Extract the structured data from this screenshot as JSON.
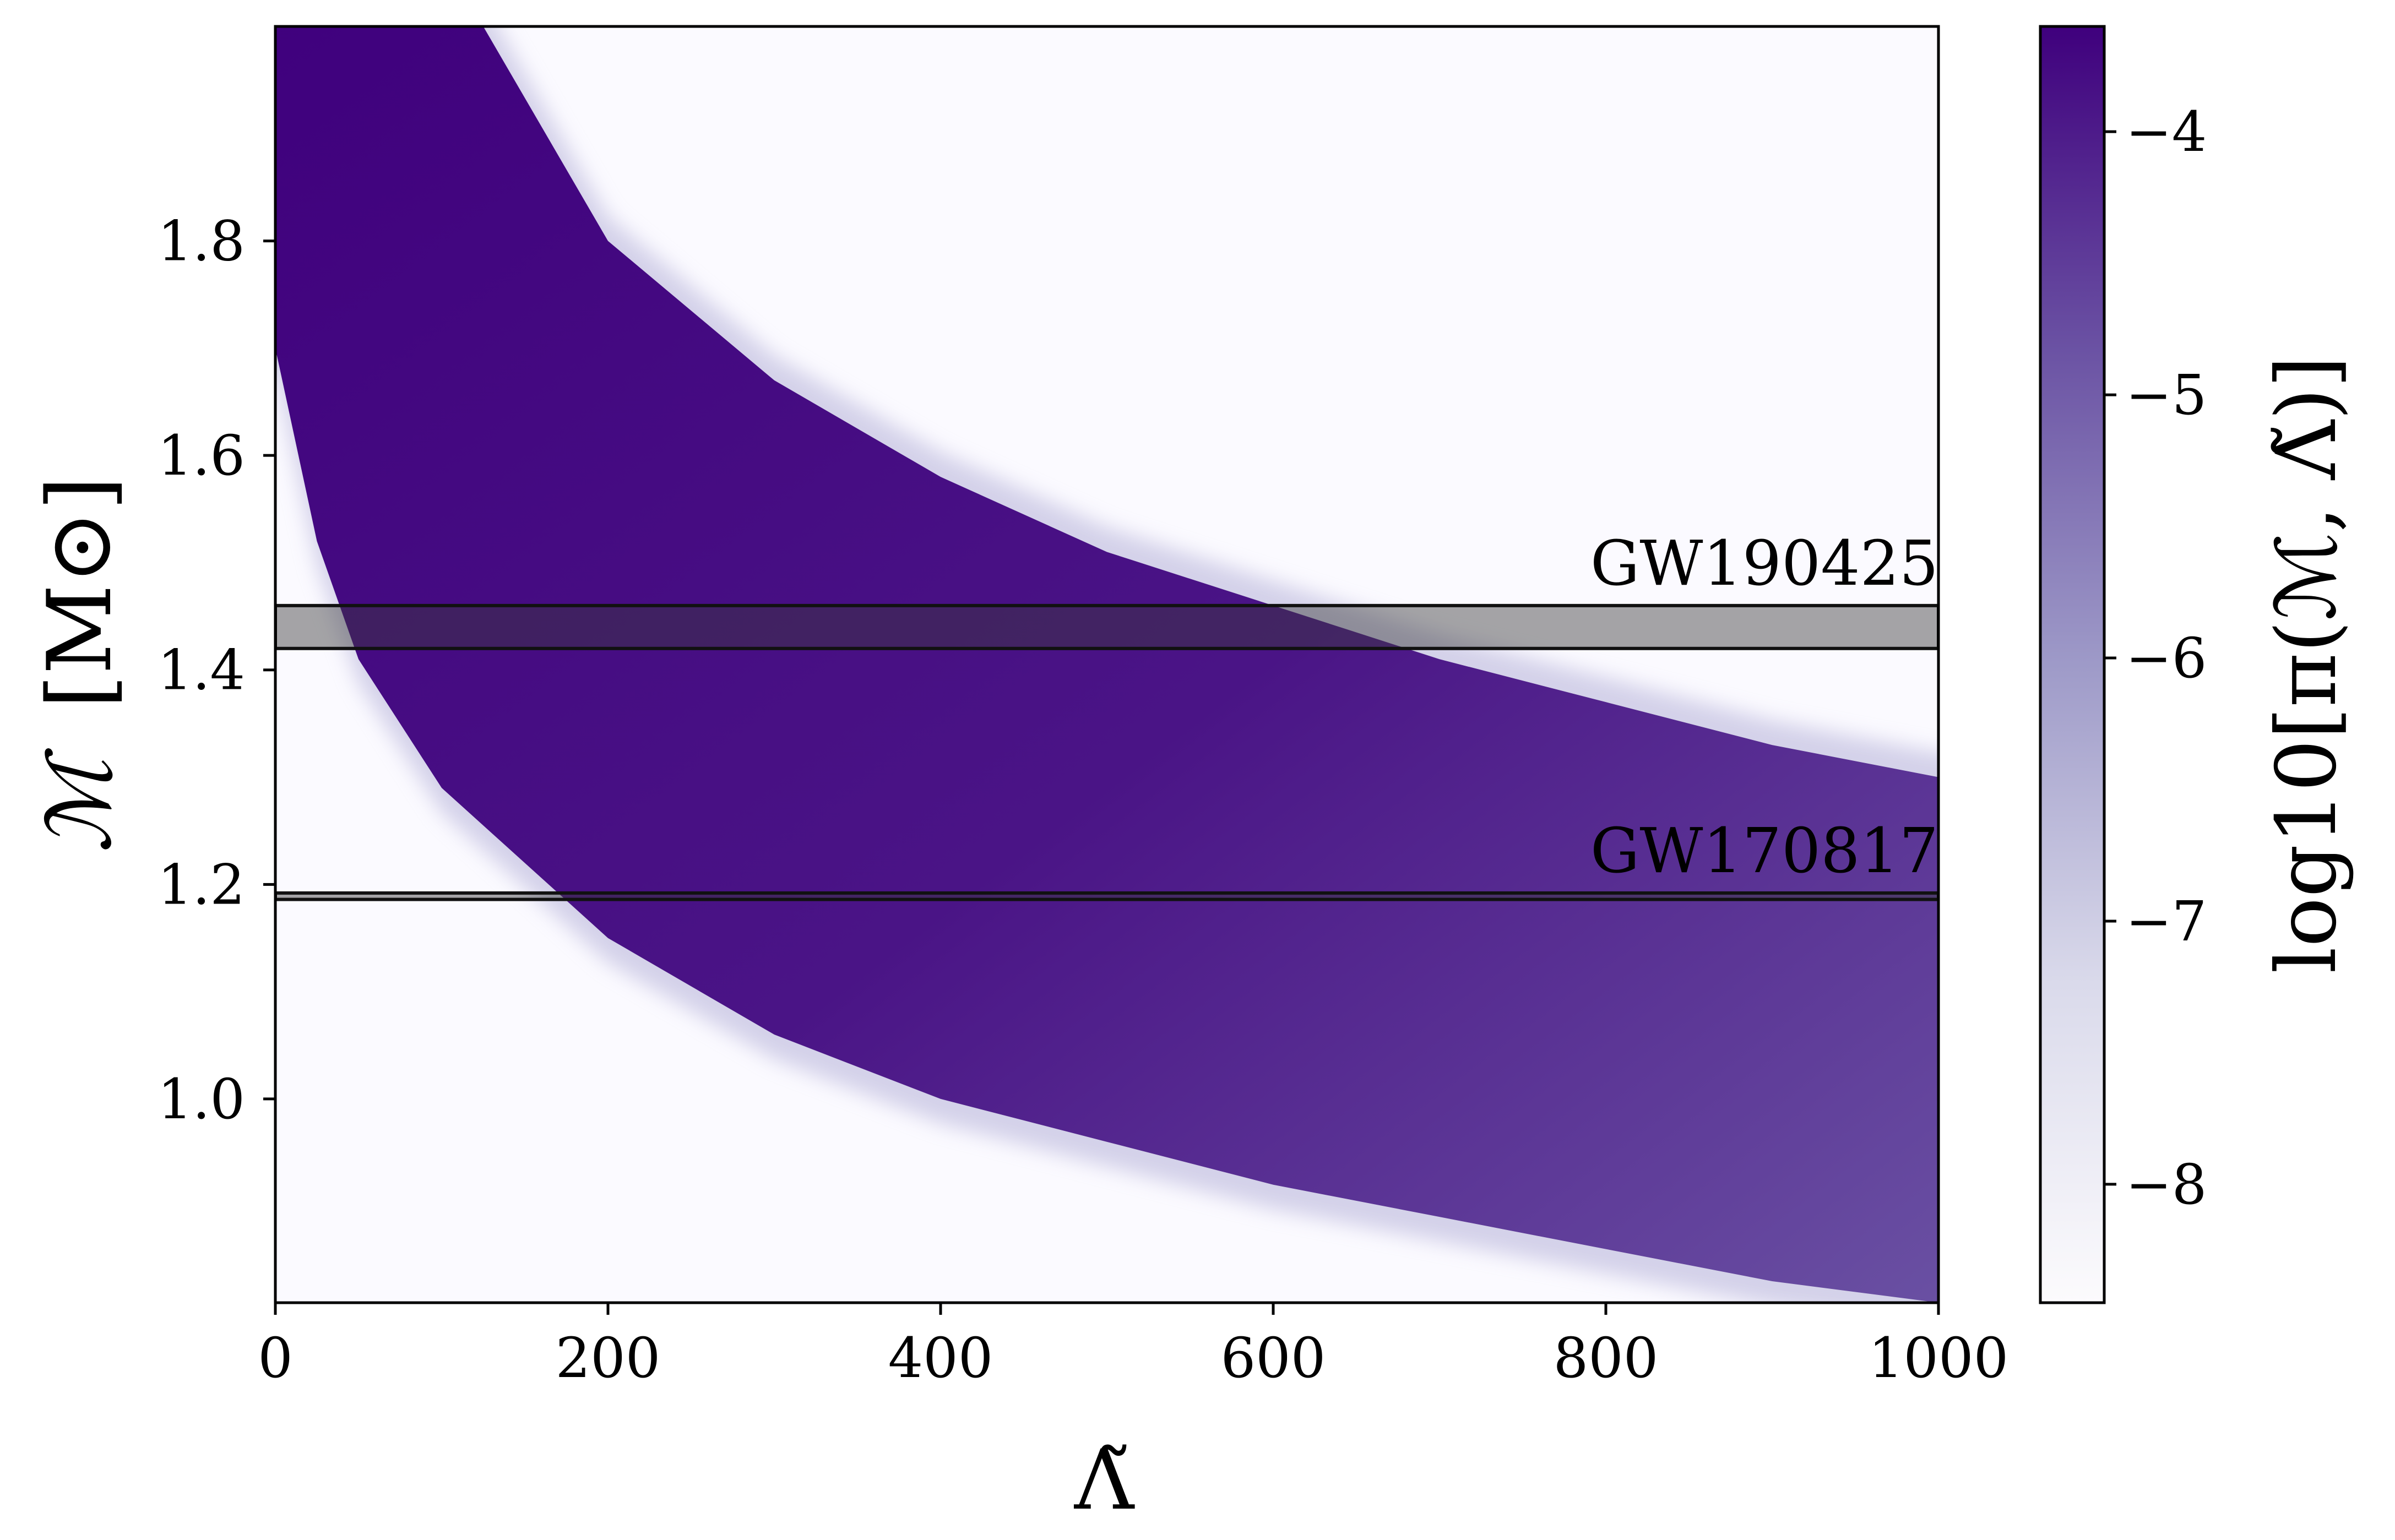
{
  "chart_data": {
    "type": "heatmap",
    "title": "",
    "xlabel": "Λ̃",
    "ylabel_main": "ℳ",
    "ylabel_unit": "[M⊙]",
    "colorbar_label": "log10[π(ℳ, Λ̃)]",
    "xlim": [
      0,
      1000
    ],
    "ylim": [
      0.81,
      2.0
    ],
    "x_ticks": [
      {
        "value": 0,
        "label": "0"
      },
      {
        "value": 200,
        "label": "200"
      },
      {
        "value": 400,
        "label": "400"
      },
      {
        "value": 600,
        "label": "600"
      },
      {
        "value": 800,
        "label": "800"
      },
      {
        "value": 1000,
        "label": "1000"
      }
    ],
    "y_ticks": [
      {
        "value": 1.0,
        "label": "1.0"
      },
      {
        "value": 1.2,
        "label": "1.2"
      },
      {
        "value": 1.4,
        "label": "1.4"
      },
      {
        "value": 1.6,
        "label": "1.6"
      },
      {
        "value": 1.8,
        "label": "1.8"
      }
    ],
    "colorbar": {
      "range": [
        -8.45,
        -3.6
      ],
      "ticks": [
        {
          "value": -4,
          "label": "−4"
        },
        {
          "value": -5,
          "label": "−5"
        },
        {
          "value": -6,
          "label": "−6"
        },
        {
          "value": -7,
          "label": "−7"
        },
        {
          "value": -8,
          "label": "−8"
        }
      ],
      "colormap": "Purples",
      "color_low": "#fcfbfd",
      "color_mid": "#9e9ac8",
      "color_high": "#3f007d"
    },
    "band": {
      "description_upper_edge": [
        {
          "x": 125,
          "y": 2.0
        },
        {
          "x": 200,
          "y": 1.8
        },
        {
          "x": 300,
          "y": 1.67
        },
        {
          "x": 400,
          "y": 1.58
        },
        {
          "x": 500,
          "y": 1.51
        },
        {
          "x": 600,
          "y": 1.46
        },
        {
          "x": 700,
          "y": 1.41
        },
        {
          "x": 800,
          "y": 1.37
        },
        {
          "x": 900,
          "y": 1.33
        },
        {
          "x": 1000,
          "y": 1.3
        }
      ],
      "description_lower_edge": [
        {
          "x": 0,
          "y": 1.7
        },
        {
          "x": 25,
          "y": 1.52
        },
        {
          "x": 50,
          "y": 1.41
        },
        {
          "x": 100,
          "y": 1.29
        },
        {
          "x": 150,
          "y": 1.22
        },
        {
          "x": 200,
          "y": 1.15
        },
        {
          "x": 300,
          "y": 1.06
        },
        {
          "x": 400,
          "y": 1.0
        },
        {
          "x": 500,
          "y": 0.96
        },
        {
          "x": 600,
          "y": 0.92
        },
        {
          "x": 700,
          "y": 0.89
        },
        {
          "x": 800,
          "y": 0.86
        },
        {
          "x": 900,
          "y": 0.83
        },
        {
          "x": 1000,
          "y": 0.81
        }
      ],
      "peak_log_density": -3.7
    },
    "events": [
      {
        "name": "GW190425",
        "y_low": 1.42,
        "y_high": 1.46
      },
      {
        "name": "GW170817",
        "y_low": 1.186,
        "y_high": 1.192
      }
    ]
  }
}
